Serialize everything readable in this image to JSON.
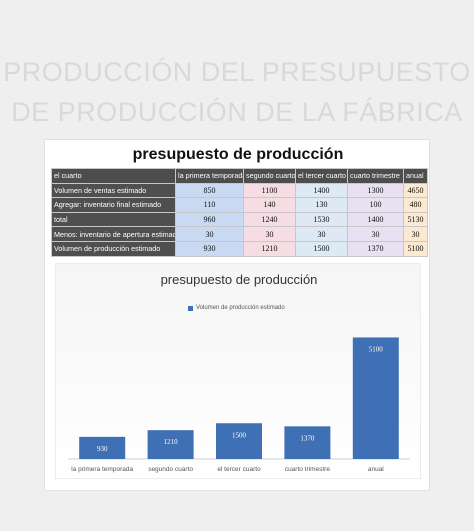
{
  "page_title": {
    "line1": "PRODUCCIÓN DEL PRESUPUESTO",
    "line2": "DE PRODUCCIÓN DE LA FÁBRICA"
  },
  "table": {
    "title": "presupuesto de producción",
    "headers": [
      "el cuarto",
      "la primera temporada",
      "segundo cuarto",
      "el tercer cuarto",
      "cuarto trimestre",
      "anual"
    ],
    "rows": [
      {
        "label": "Volumen de ventas estimado",
        "values": [
          "850",
          "1100",
          "1400",
          "1300",
          "4650"
        ]
      },
      {
        "label": "Agregar: inventario final estimado",
        "values": [
          "110",
          "140",
          "130",
          "100",
          "480"
        ]
      },
      {
        "label": "total",
        "values": [
          "960",
          "1240",
          "1530",
          "1400",
          "5130"
        ]
      },
      {
        "label": "Menos: inventario de apertura estimado",
        "values": [
          "30",
          "30",
          "30",
          "30",
          "30"
        ]
      },
      {
        "label": "Volumen de producción estimado",
        "values": [
          "930",
          "1210",
          "1500",
          "1370",
          "5100"
        ]
      }
    ]
  },
  "colors": {
    "bar": "#3f6fb4",
    "col_fills": [
      "#c9d9f2",
      "#f5dde3",
      "#dde9f5",
      "#e7e1f1",
      "#fbead1"
    ]
  },
  "chart_data": {
    "type": "bar",
    "title": "presupuesto de producción",
    "categories": [
      "la primera temporada",
      "segundo cuarto",
      "el tercer cuarto",
      "cuarto trimestre",
      "anual"
    ],
    "series": [
      {
        "name": "Volumen de producción estimado",
        "values": [
          930,
          1210,
          1500,
          1370,
          5100
        ]
      }
    ],
    "data_labels": [
      "930",
      "1210",
      "1500",
      "1370",
      "5100"
    ],
    "ylim": [
      0,
      6000
    ],
    "grid": false,
    "legend": "top-center"
  }
}
